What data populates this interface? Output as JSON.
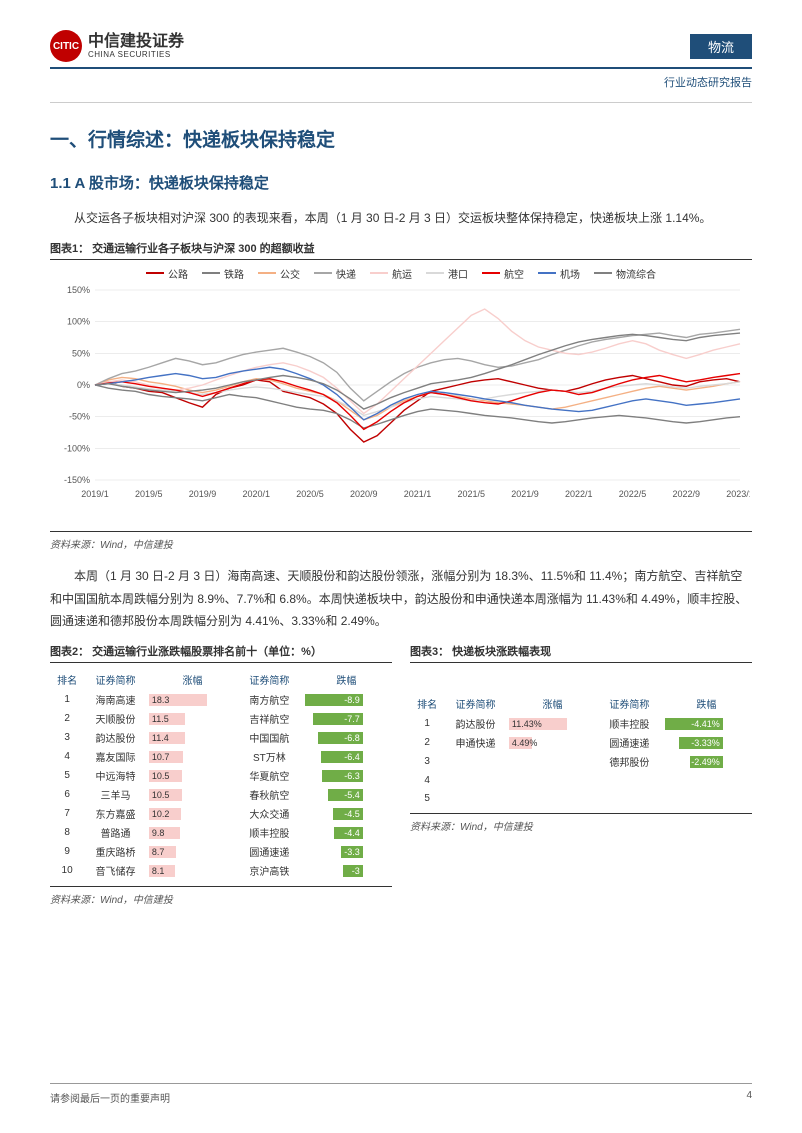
{
  "header": {
    "company_cn": "中信建投证券",
    "company_en": "CHINA SECURITIES",
    "tag": "物流",
    "subtitle": "行业动态研究报告"
  },
  "section1": {
    "title": "一、行情综述：快递板块保持稳定",
    "sub": "1.1 A 股市场：快递板块保持稳定",
    "p1": "从交运各子板块相对沪深 300 的表现来看，本周（1 月 30 日-2 月 3 日）交运板块整体保持稳定，快递板块上涨 1.14%。",
    "p2": "本周（1 月 30 日-2 月 3 日）海南高速、天顺股份和韵达股份领涨，涨幅分别为 18.3%、11.5%和 11.4%；南方航空、吉祥航空和中国国航本周跌幅分别为 8.9%、7.7%和 6.8%。本周快递板块中，韵达股份和申通快递本周涨幅为 11.43%和 4.49%，顺丰控股、圆通速递和德邦股份本周跌幅分别为 4.41%、3.33%和 2.49%。"
  },
  "fig1": {
    "title": "图表1：  交通运输行业各子板块与沪深 300 的超额收益",
    "source": "资料来源：Wind，中信建投",
    "type": "line",
    "background_color": "#ffffff",
    "grid_color": "#d9d9d9",
    "ylim": [
      -150,
      150
    ],
    "ytick_step": 50,
    "yticks": [
      "-150%",
      "-100%",
      "-50%",
      "0%",
      "50%",
      "100%",
      "150%"
    ],
    "xticks": [
      "2019/1",
      "2019/5",
      "2019/9",
      "2020/1",
      "2020/5",
      "2020/9",
      "2021/1",
      "2021/5",
      "2021/9",
      "2022/1",
      "2022/5",
      "2022/9",
      "2023/1"
    ],
    "line_width": 1.4,
    "series": [
      {
        "name": "公路",
        "color": "#c00000",
        "data": [
          0,
          5,
          -2,
          -5,
          -10,
          -12,
          -20,
          -28,
          -35,
          -15,
          -5,
          0,
          8,
          5,
          -10,
          -15,
          -20,
          -30,
          -45,
          -70,
          -90,
          -80,
          -60,
          -40,
          -25,
          -10,
          -5,
          0,
          5,
          8,
          10,
          5,
          0,
          -5,
          -8,
          -10,
          -5,
          2,
          8,
          12,
          15,
          10,
          5,
          0,
          -2,
          5,
          8,
          10,
          5
        ]
      },
      {
        "name": "铁路",
        "color": "#7f7f7f",
        "data": [
          0,
          -5,
          -8,
          -10,
          -15,
          -18,
          -20,
          -22,
          -25,
          -20,
          -15,
          -18,
          -20,
          -25,
          -30,
          -35,
          -38,
          -40,
          -45,
          -55,
          -68,
          -62,
          -55,
          -48,
          -42,
          -38,
          -40,
          -42,
          -45,
          -48,
          -50,
          -52,
          -55,
          -58,
          -60,
          -58,
          -55,
          -52,
          -50,
          -48,
          -50,
          -52,
          -55,
          -58,
          -60,
          -58,
          -55,
          -52,
          -50
        ]
      },
      {
        "name": "公交",
        "color": "#f4b084",
        "data": [
          0,
          8,
          12,
          10,
          5,
          2,
          -2,
          -8,
          -12,
          -8,
          -2,
          5,
          10,
          8,
          2,
          -5,
          -10,
          -15,
          -25,
          -40,
          -55,
          -48,
          -35,
          -25,
          -18,
          -12,
          -15,
          -18,
          -22,
          -25,
          -28,
          -30,
          -32,
          -35,
          -38,
          -35,
          -30,
          -25,
          -20,
          -15,
          -10,
          -5,
          -2,
          -5,
          -8,
          -5,
          -2,
          2,
          5
        ]
      },
      {
        "name": "快递",
        "color": "#a6a6a6",
        "data": [
          0,
          10,
          18,
          22,
          28,
          35,
          42,
          38,
          32,
          35,
          42,
          48,
          52,
          55,
          58,
          52,
          45,
          35,
          20,
          -5,
          -25,
          -10,
          5,
          18,
          28,
          35,
          40,
          42,
          38,
          32,
          28,
          30,
          35,
          40,
          48,
          55,
          62,
          68,
          72,
          75,
          78,
          80,
          82,
          78,
          75,
          80,
          82,
          85,
          88
        ]
      },
      {
        "name": "航运",
        "color": "#f8cecc",
        "data": [
          0,
          5,
          8,
          5,
          0,
          -5,
          -8,
          -5,
          0,
          8,
          15,
          22,
          28,
          32,
          35,
          30,
          22,
          12,
          -5,
          -25,
          -45,
          -30,
          -10,
          10,
          30,
          50,
          70,
          90,
          110,
          120,
          105,
          85,
          70,
          60,
          55,
          50,
          48,
          52,
          58,
          65,
          70,
          65,
          55,
          48,
          42,
          48,
          55,
          60,
          65
        ]
      },
      {
        "name": "港口",
        "color": "#d9d9d9",
        "data": [
          0,
          2,
          0,
          -3,
          -6,
          -8,
          -10,
          -12,
          -15,
          -12,
          -8,
          -5,
          -3,
          -5,
          -8,
          -12,
          -15,
          -18,
          -25,
          -35,
          -48,
          -42,
          -35,
          -28,
          -22,
          -18,
          -20,
          -22,
          -25,
          -22,
          -18,
          -15,
          -12,
          -10,
          -8,
          -10,
          -12,
          -10,
          -5,
          -2,
          0,
          2,
          0,
          -3,
          -5,
          -2,
          0,
          2,
          5
        ]
      },
      {
        "name": "航空",
        "color": "#e60000",
        "data": [
          0,
          3,
          5,
          2,
          -2,
          -5,
          -8,
          -12,
          -18,
          -12,
          -5,
          2,
          8,
          10,
          5,
          -2,
          -8,
          -15,
          -28,
          -48,
          -70,
          -58,
          -42,
          -28,
          -18,
          -12,
          -15,
          -20,
          -25,
          -28,
          -30,
          -25,
          -18,
          -12,
          -8,
          -10,
          -15,
          -12,
          -5,
          2,
          8,
          12,
          15,
          10,
          5,
          8,
          12,
          15,
          18
        ]
      },
      {
        "name": "机场",
        "color": "#4472c4",
        "data": [
          0,
          2,
          5,
          8,
          12,
          15,
          18,
          15,
          10,
          12,
          18,
          22,
          25,
          28,
          25,
          18,
          10,
          0,
          -15,
          -35,
          -55,
          -45,
          -32,
          -22,
          -15,
          -10,
          -12,
          -15,
          -18,
          -22,
          -25,
          -28,
          -32,
          -35,
          -38,
          -40,
          -42,
          -40,
          -35,
          -30,
          -25,
          -22,
          -25,
          -28,
          -32,
          -30,
          -28,
          -25,
          -22
        ]
      },
      {
        "name": "物流综合",
        "color": "#808080",
        "data": [
          0,
          2,
          -2,
          -5,
          -8,
          -10,
          -12,
          -10,
          -8,
          -5,
          0,
          5,
          8,
          12,
          15,
          12,
          8,
          2,
          -8,
          -22,
          -38,
          -30,
          -20,
          -12,
          -5,
          2,
          5,
          8,
          12,
          18,
          25,
          32,
          40,
          48,
          55,
          62,
          68,
          72,
          75,
          78,
          80,
          78,
          75,
          72,
          70,
          75,
          78,
          80,
          82
        ]
      }
    ]
  },
  "fig2": {
    "title": "图表2：  交通运输行业涨跌幅股票排名前十（单位：%）",
    "source": "资料来源：Wind，中信建投",
    "columns": [
      "排名",
      "证券简称",
      "涨幅",
      "证券简称",
      "跌幅"
    ],
    "gain_color": "#f8cecc",
    "loss_color": "#70ad47",
    "max_gain": 18.3,
    "max_loss": 8.9,
    "rows": [
      {
        "rank": 1,
        "gain_name": "海南高速",
        "gain": 18.3,
        "loss_name": "南方航空",
        "loss": -8.9
      },
      {
        "rank": 2,
        "gain_name": "天顺股份",
        "gain": 11.5,
        "loss_name": "吉祥航空",
        "loss": -7.7
      },
      {
        "rank": 3,
        "gain_name": "韵达股份",
        "gain": 11.4,
        "loss_name": "中国国航",
        "loss": -6.8
      },
      {
        "rank": 4,
        "gain_name": "嘉友国际",
        "gain": 10.7,
        "loss_name": "ST万林",
        "loss": -6.4
      },
      {
        "rank": 5,
        "gain_name": "中远海特",
        "gain": 10.5,
        "loss_name": "华夏航空",
        "loss": -6.3
      },
      {
        "rank": 6,
        "gain_name": "三羊马",
        "gain": 10.5,
        "loss_name": "春秋航空",
        "loss": -5.4
      },
      {
        "rank": 7,
        "gain_name": "东方嘉盛",
        "gain": 10.2,
        "loss_name": "大众交通",
        "loss": -4.5
      },
      {
        "rank": 8,
        "gain_name": "普路通",
        "gain": 9.8,
        "loss_name": "顺丰控股",
        "loss": -4.4
      },
      {
        "rank": 9,
        "gain_name": "重庆路桥",
        "gain": 8.7,
        "loss_name": "圆通速递",
        "loss": -3.3
      },
      {
        "rank": 10,
        "gain_name": "音飞储存",
        "gain": 8.1,
        "loss_name": "京沪高铁",
        "loss": -3.0
      }
    ]
  },
  "fig3": {
    "title": "图表3：  快递板块涨跌幅表现",
    "source": "资料来源：Wind，中信建投",
    "columns": [
      "排名",
      "证券简称",
      "涨幅",
      "证券简称",
      "跌幅"
    ],
    "gain_color": "#f8cecc",
    "loss_color": "#70ad47",
    "max_gain": 11.43,
    "max_loss": 4.41,
    "rows": [
      {
        "rank": 1,
        "gain_name": "韵达股份",
        "gain": "11.43%",
        "gain_v": 11.43,
        "loss_name": "顺丰控股",
        "loss": "-4.41%",
        "loss_v": 4.41
      },
      {
        "rank": 2,
        "gain_name": "申通快递",
        "gain": "4.49%",
        "gain_v": 4.49,
        "loss_name": "圆通速递",
        "loss": "-3.33%",
        "loss_v": 3.33
      },
      {
        "rank": 3,
        "gain_name": "",
        "gain": "",
        "gain_v": 0,
        "loss_name": "德邦股份",
        "loss": "-2.49%",
        "loss_v": 2.49
      },
      {
        "rank": 4,
        "gain_name": "",
        "gain": "",
        "gain_v": 0,
        "loss_name": "",
        "loss": "",
        "loss_v": 0
      },
      {
        "rank": 5,
        "gain_name": "",
        "gain": "",
        "gain_v": 0,
        "loss_name": "",
        "loss": "",
        "loss_v": 0
      }
    ]
  },
  "footer": {
    "note": "请参阅最后一页的重要声明",
    "page": "4"
  }
}
